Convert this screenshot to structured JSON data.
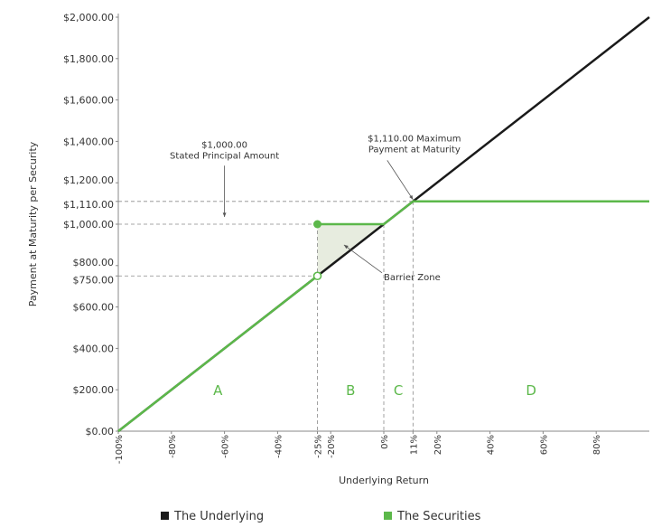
{
  "chart_data": {
    "type": "line",
    "xlabel": "Underlying Return",
    "ylabel": "Payment at Maturity per Security",
    "xlim": [
      -100,
      100
    ],
    "ylim": [
      0,
      2000
    ],
    "x_ticks": [
      {
        "value": -100,
        "label": "-100%"
      },
      {
        "value": -80,
        "label": "-80%"
      },
      {
        "value": -60,
        "label": "-60%"
      },
      {
        "value": -40,
        "label": "-40%"
      },
      {
        "value": -25,
        "label": "-25%"
      },
      {
        "value": -20,
        "label": "-20%"
      },
      {
        "value": 0,
        "label": "0%"
      },
      {
        "value": 11,
        "label": "11%"
      },
      {
        "value": 20,
        "label": "20%"
      },
      {
        "value": 40,
        "label": "40%"
      },
      {
        "value": 60,
        "label": "60%"
      },
      {
        "value": 80,
        "label": "80%"
      }
    ],
    "y_ticks": [
      {
        "value": 0,
        "label": "$0.00"
      },
      {
        "value": 200,
        "label": "$200.00"
      },
      {
        "value": 400,
        "label": "$400.00"
      },
      {
        "value": 600,
        "label": "$600.00"
      },
      {
        "value": 750,
        "label": "$750.00"
      },
      {
        "value": 800,
        "label": "$800.00"
      },
      {
        "value": 1000,
        "label": "$1,000.00"
      },
      {
        "value": 1110,
        "label": "$1,110.00"
      },
      {
        "value": 1200,
        "label": "$1,200.00"
      },
      {
        "value": 1400,
        "label": "$1,400.00"
      },
      {
        "value": 1600,
        "label": "$1,600.00"
      },
      {
        "value": 1800,
        "label": "$1,800.00"
      },
      {
        "value": 2000,
        "label": "$2,000.00"
      }
    ],
    "series": [
      {
        "name": "The Underlying",
        "color": "#1a1a1a",
        "points": [
          [
            -100,
            0
          ],
          [
            100,
            2000
          ]
        ]
      },
      {
        "name": "The Securities",
        "color": "#5cb84a",
        "segments": [
          [
            [
              -100,
              0
            ],
            [
              -25,
              750
            ]
          ],
          [
            [
              -25,
              1000
            ],
            [
              0,
              1000
            ],
            [
              11,
              1110
            ],
            [
              100,
              1110
            ]
          ]
        ],
        "markers": [
          {
            "x": -25,
            "y": 1000,
            "style": "filled"
          },
          {
            "x": -25,
            "y": 750,
            "style": "open"
          }
        ]
      }
    ],
    "reference_lines": {
      "y": [
        750,
        1000,
        1110
      ],
      "x": [
        -25,
        0,
        11
      ]
    },
    "barrier_zone": {
      "x0": -25,
      "x1": 0,
      "y_top": 1000,
      "color": "#e7ecdf"
    },
    "zones": [
      {
        "label": "A",
        "x": -62.5,
        "y": 200
      },
      {
        "label": "B",
        "x": -12.5,
        "y": 200
      },
      {
        "label": "C",
        "x": 5.5,
        "y": 200
      },
      {
        "label": "D",
        "x": 55.5,
        "y": 200
      }
    ],
    "annotations": [
      {
        "lines": [
          "$1,000.00",
          "Stated Principal Amount"
        ],
        "x": -60,
        "y": 1370,
        "arrow_to": [
          -60,
          1000
        ]
      },
      {
        "lines": [
          "$1,110.00 Maximum",
          "Payment at Maturity"
        ],
        "x": 11.5,
        "y": 1400,
        "arrow_to": [
          11,
          1110
        ]
      },
      {
        "lines": [
          "Barrier Zone"
        ],
        "x": 0,
        "y": 730,
        "arrow_to": [
          -15,
          900
        ]
      }
    ],
    "legend": {
      "placement": "bottom",
      "entries": [
        {
          "label": "The Underlying",
          "color": "#1a1a1a"
        },
        {
          "label": "The Securities",
          "color": "#5cb84a"
        }
      ]
    },
    "grid": false
  }
}
